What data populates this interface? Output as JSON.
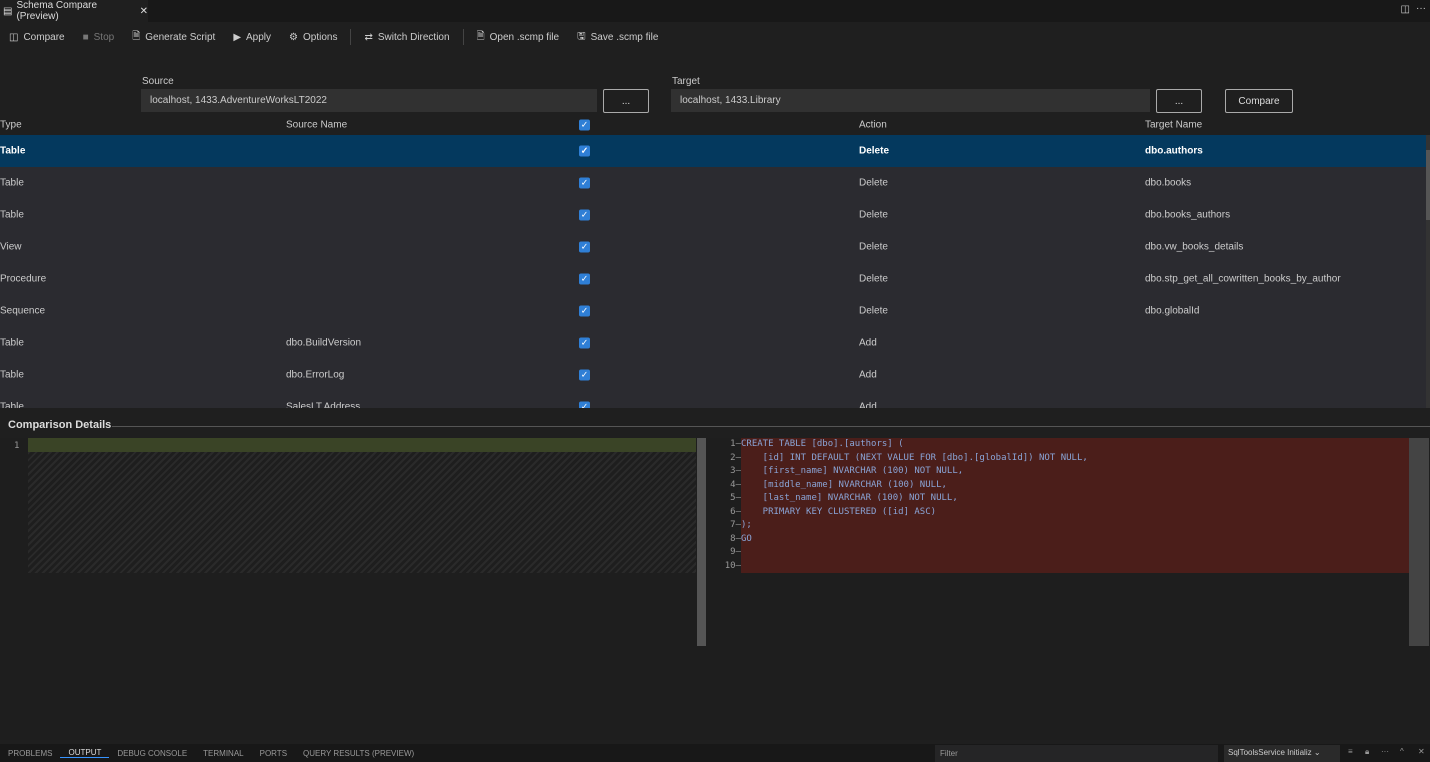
{
  "tab": {
    "title": "Schema Compare (Preview)",
    "close": "✕"
  },
  "toolbar": {
    "compare": "Compare",
    "stop": "Stop",
    "generate": "Generate Script",
    "apply": "Apply",
    "options": "Options",
    "switch": "Switch Direction",
    "open": "Open .scmp file",
    "save": "Save .scmp file"
  },
  "source": {
    "label": "Source",
    "value": "localhost, 1433.AdventureWorksLT2022",
    "browse": "..."
  },
  "target": {
    "label": "Target",
    "value": "localhost, 1433.Library",
    "browse": "...",
    "compare": "Compare"
  },
  "grid": {
    "headers": [
      "Type",
      "Source Name",
      "",
      "Action",
      "Target Name"
    ],
    "rows": [
      {
        "type": "Table",
        "source": "",
        "action": "Delete",
        "target": "dbo.authors"
      },
      {
        "type": "Table",
        "source": "",
        "action": "Delete",
        "target": "dbo.books"
      },
      {
        "type": "Table",
        "source": "",
        "action": "Delete",
        "target": "dbo.books_authors"
      },
      {
        "type": "View",
        "source": "",
        "action": "Delete",
        "target": "dbo.vw_books_details"
      },
      {
        "type": "Procedure",
        "source": "",
        "action": "Delete",
        "target": "dbo.stp_get_all_cowritten_books_by_author"
      },
      {
        "type": "Sequence",
        "source": "",
        "action": "Delete",
        "target": "dbo.globalId"
      },
      {
        "type": "Table",
        "source": "dbo.BuildVersion",
        "action": "Add",
        "target": ""
      },
      {
        "type": "Table",
        "source": "dbo.ErrorLog",
        "action": "Add",
        "target": ""
      },
      {
        "type": "Table",
        "source": "SalesLT.Address",
        "action": "Add",
        "target": ""
      }
    ]
  },
  "details": {
    "title": "Comparison Details",
    "left_lines": [
      "1"
    ],
    "right_lines": [
      "CREATE TABLE [dbo].[authors] (",
      "    [id] INT DEFAULT (NEXT VALUE FOR [dbo].[globalId]) NOT NULL,",
      "    [first_name] NVARCHAR (100) NOT NULL,",
      "    [middle_name] NVARCHAR (100) NULL,",
      "    [last_name] NVARCHAR (100) NOT NULL,",
      "    PRIMARY KEY CLUSTERED ([id] ASC)",
      ");",
      "GO",
      "",
      ""
    ]
  },
  "panel": {
    "tabs": [
      "PROBLEMS",
      "OUTPUT",
      "DEBUG CONSOLE",
      "TERMINAL",
      "PORTS",
      "QUERY RESULTS (PREVIEW)"
    ],
    "filter_placeholder": "Filter",
    "channel": "SqlToolsService Initializ"
  }
}
